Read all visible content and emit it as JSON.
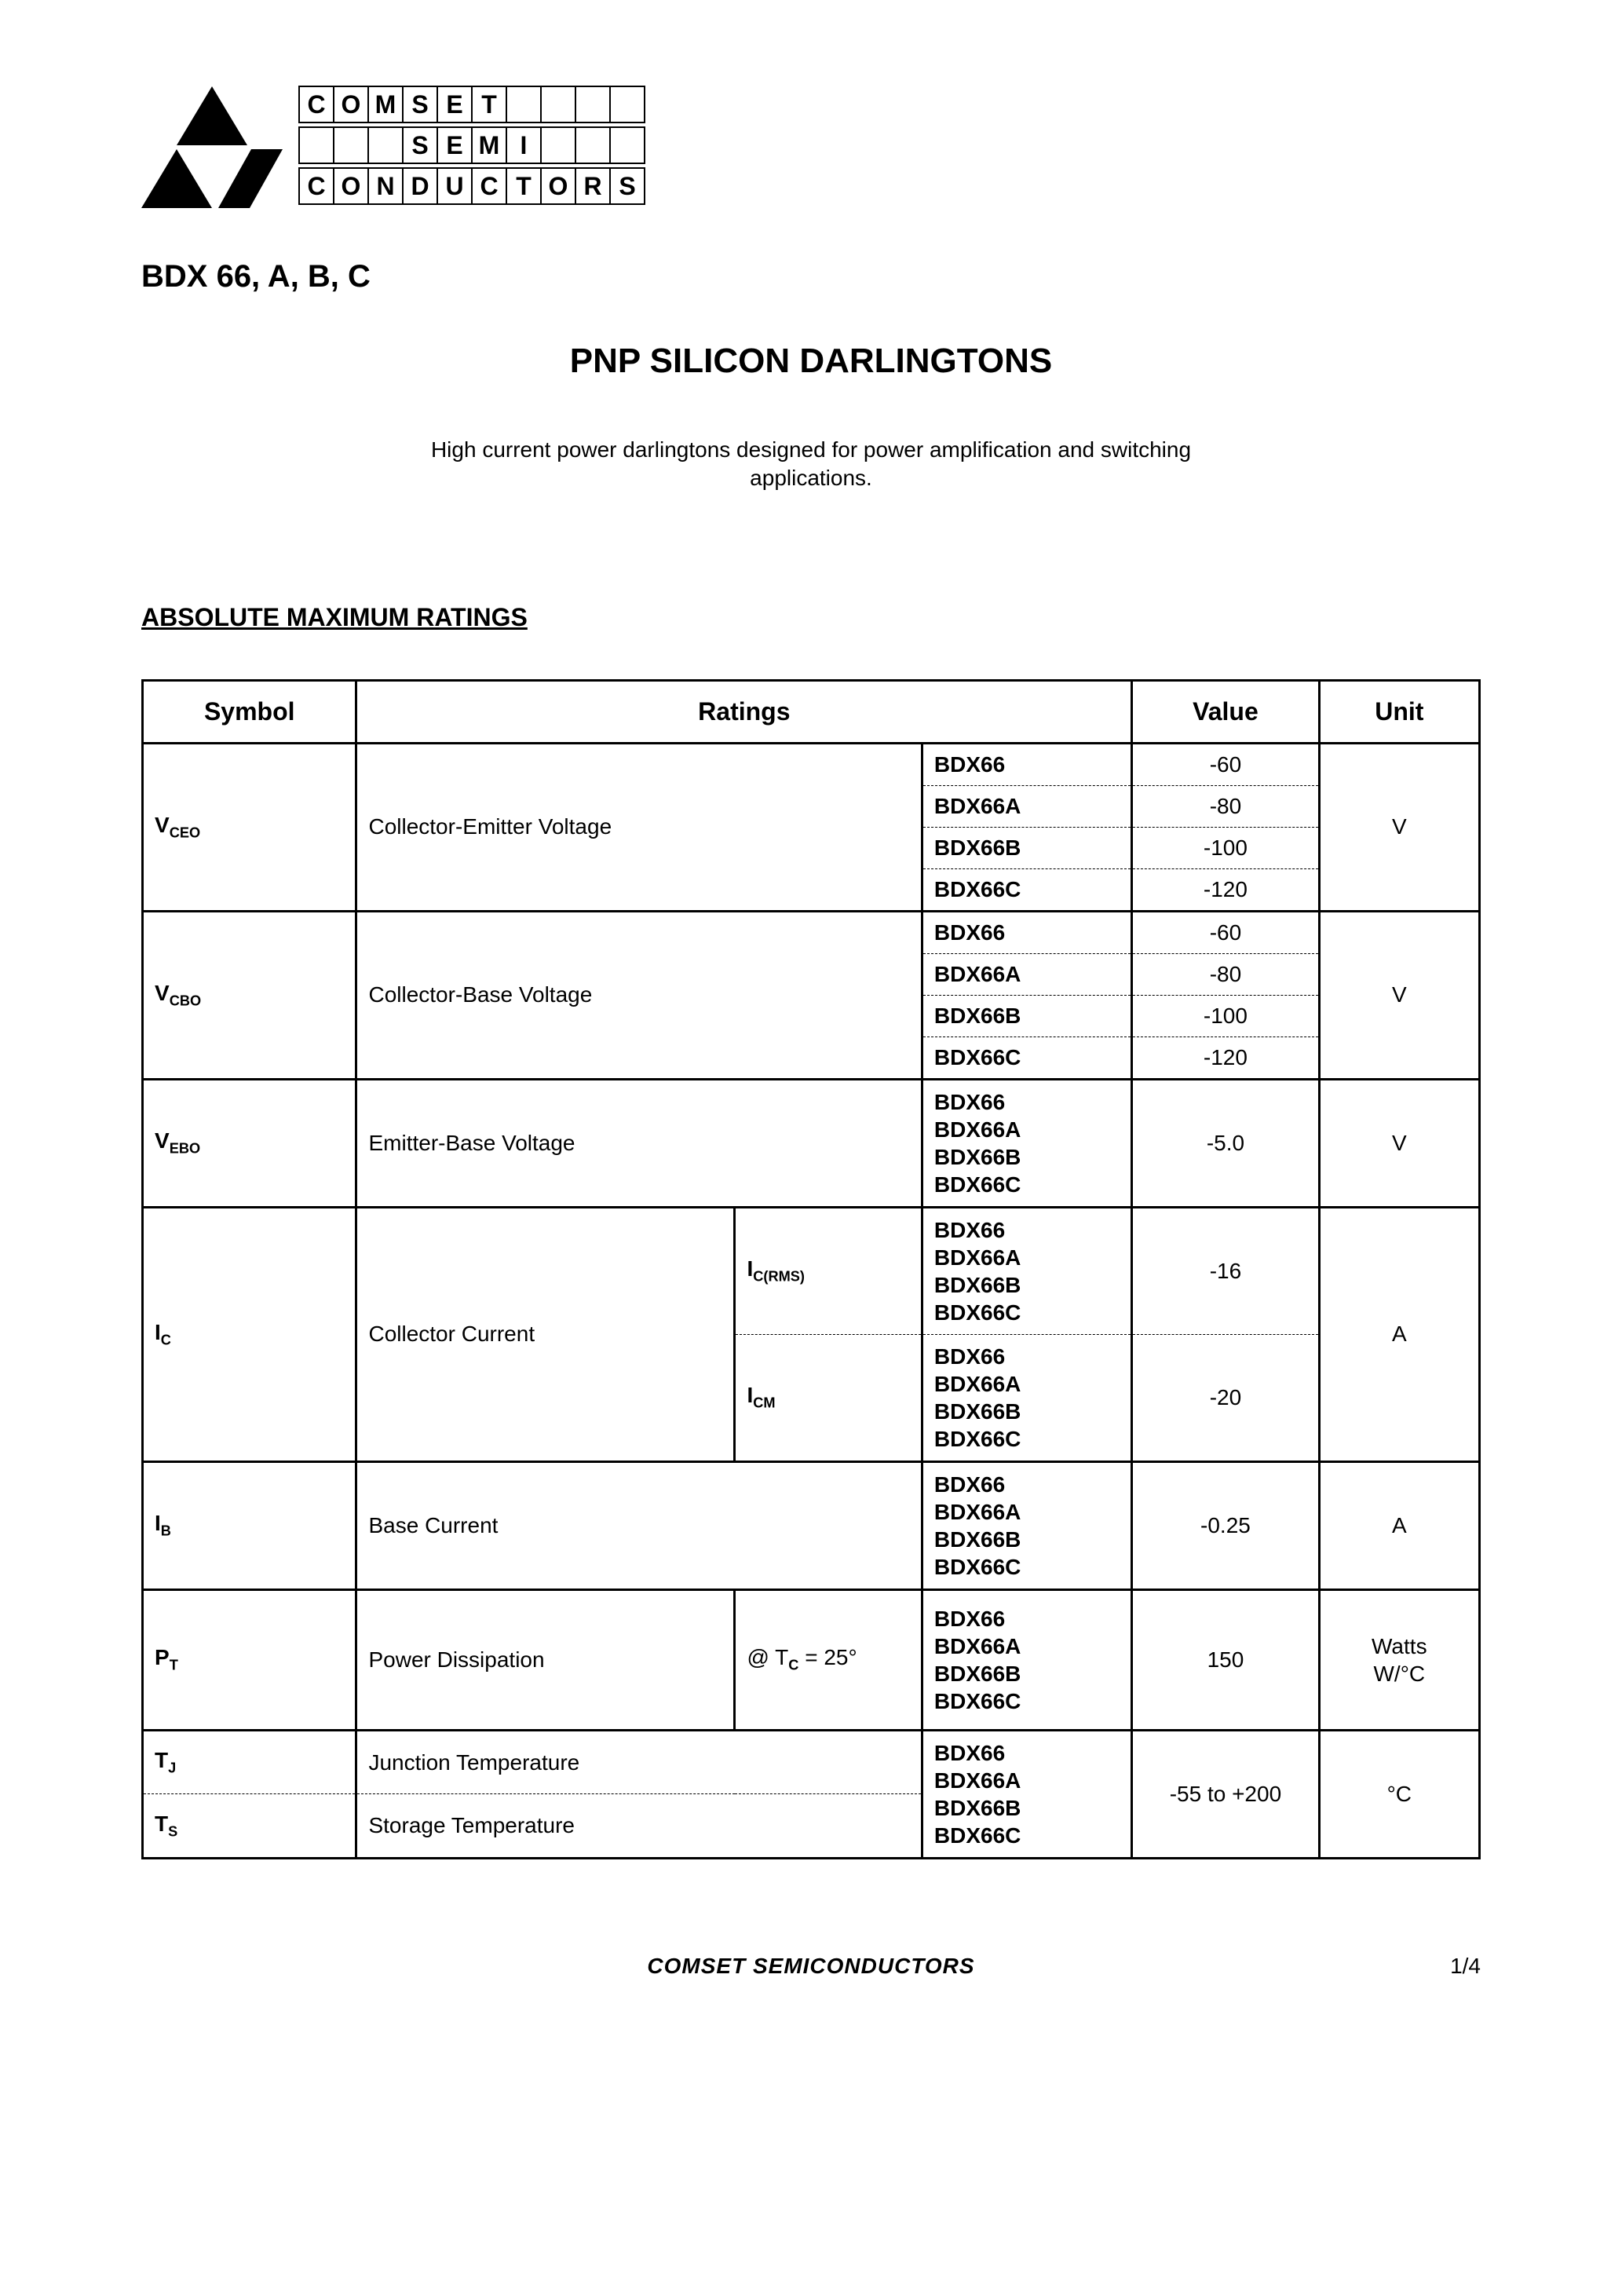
{
  "logo": {
    "rows": [
      [
        "C",
        "O",
        "M",
        "S",
        "E",
        "T",
        "",
        "",
        "",
        ""
      ],
      [
        "",
        "",
        "",
        "S",
        "E",
        "M",
        "I",
        "",
        "",
        ""
      ],
      [
        "C",
        "O",
        "N",
        "D",
        "U",
        "C",
        "T",
        "O",
        "R",
        "S"
      ]
    ]
  },
  "part_number": "BDX 66, A, B, C",
  "title": "PNP SILICON DARLINGTONS",
  "description": "High current power darlingtons designed for power amplification and switching applications.",
  "section_heading": "ABSOLUTE MAXIMUM RATINGS",
  "table": {
    "headers": [
      "Symbol",
      "Ratings",
      "Value",
      "Unit"
    ],
    "parts_all": "BDX66\nBDX66A\nBDX66B\nBDX66C",
    "vceo": {
      "sym": "V",
      "sub": "CEO",
      "desc": "Collector-Emitter Voltage",
      "rows": [
        {
          "part": "BDX66",
          "value": "-60"
        },
        {
          "part": "BDX66A",
          "value": "-80"
        },
        {
          "part": "BDX66B",
          "value": "-100"
        },
        {
          "part": "BDX66C",
          "value": "-120"
        }
      ],
      "unit": "V"
    },
    "vcbo": {
      "sym": "V",
      "sub": "CBO",
      "desc": "Collector-Base Voltage",
      "rows": [
        {
          "part": "BDX66",
          "value": "-60"
        },
        {
          "part": "BDX66A",
          "value": "-80"
        },
        {
          "part": "BDX66B",
          "value": "-100"
        },
        {
          "part": "BDX66C",
          "value": "-120"
        }
      ],
      "unit": "V"
    },
    "vebo": {
      "sym": "V",
      "sub": "EBO",
      "desc": "Emitter-Base Voltage",
      "value": "-5.0",
      "unit": "V"
    },
    "ic": {
      "sym": "I",
      "sub": "C",
      "desc": "Collector Current",
      "sub1": {
        "sym": "I",
        "sub": "C(RMS)",
        "value": "-16"
      },
      "sub2": {
        "sym": "I",
        "sub": "CM",
        "value": "-20"
      },
      "unit": "A"
    },
    "ib": {
      "sym": "I",
      "sub": "B",
      "desc": "Base Current",
      "value": "-0.25",
      "unit": "A"
    },
    "pt": {
      "sym": "P",
      "sub": "T",
      "desc": "Power Dissipation",
      "cond_prefix": "@ T",
      "cond_sub": "C",
      "cond_suffix": " = 25°",
      "value": "150",
      "unit": "Watts\nW/°C"
    },
    "tj": {
      "sym": "T",
      "sub": "J",
      "desc": "Junction Temperature"
    },
    "ts": {
      "sym": "T",
      "sub": "S",
      "desc": "Storage Temperature"
    },
    "temp_value": "-55 to +200",
    "temp_unit": "°C"
  },
  "footer": {
    "brand": "COMSET SEMICONDUCTORS",
    "page": "1/4"
  },
  "colors": {
    "text": "#000000",
    "background": "#ffffff",
    "border": "#000000"
  },
  "fonts": {
    "body": "Arial",
    "title_size_pt": 33,
    "heading_size_pt": 24,
    "table_size_pt": 21
  }
}
